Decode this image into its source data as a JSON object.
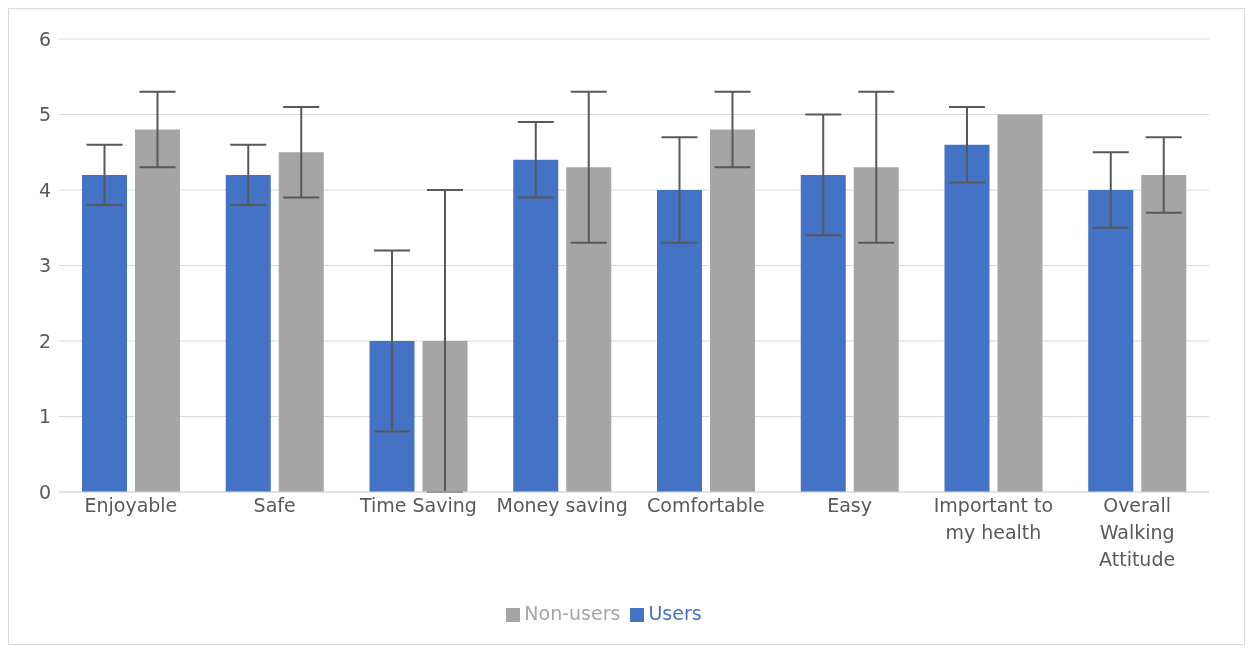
{
  "chart_data": {
    "type": "bar",
    "categories": [
      "Enjoyable",
      "Safe",
      "Time Saving",
      "Money saving",
      "Comfortable",
      "Easy",
      "Important to my health",
      "Overall Walking Attitude"
    ],
    "series": [
      {
        "name": "Users",
        "color": "#4472c4",
        "values": [
          4.2,
          4.2,
          2,
          4.4,
          4.0,
          4.2,
          4.6,
          4.0
        ],
        "errors": [
          0.4,
          0.4,
          1.2,
          0.5,
          0.7,
          0.8,
          0.5,
          0.5
        ]
      },
      {
        "name": "Non-users",
        "color": "#a5a5a5",
        "values": [
          4.8,
          4.5,
          2,
          4.3,
          4.8,
          4.3,
          5,
          4.2
        ],
        "errors": [
          0.5,
          0.6,
          2,
          1,
          0.5,
          1,
          0,
          0.5
        ]
      }
    ],
    "ylim": [
      0,
      6
    ],
    "yticks": [
      0,
      1,
      2,
      3,
      4,
      5,
      6
    ],
    "grid": "y",
    "legend": "bottom"
  }
}
